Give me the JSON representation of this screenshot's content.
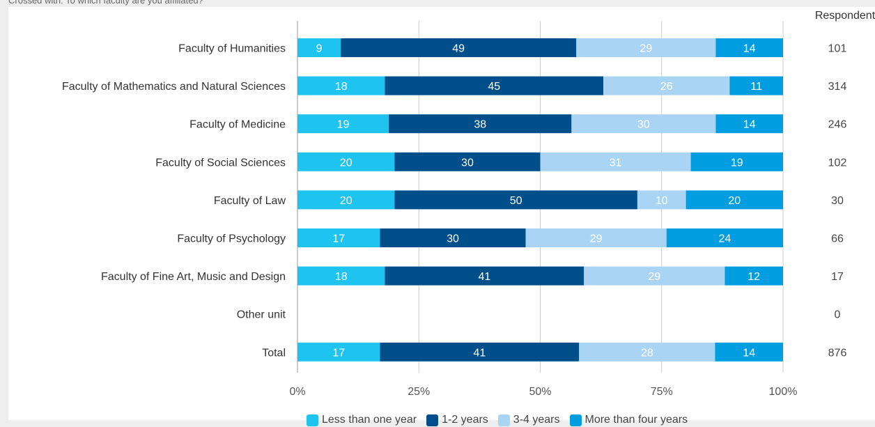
{
  "header": {
    "crossed_with": "Crossed with: To which faculty are you affiliated?"
  },
  "chart_data": {
    "type": "bar",
    "orientation": "horizontal",
    "stacked": true,
    "categories": [
      "Faculty of Humanities",
      "Faculty of Mathematics and Natural Sciences",
      "Faculty of Medicine",
      "Faculty of Social Sciences",
      "Faculty of Law",
      "Faculty of Psychology",
      "Faculty of Fine Art, Music and Design",
      "Other unit",
      "Total"
    ],
    "series": [
      {
        "name": "Less than one year",
        "color": "#1ec3f0",
        "values": [
          9,
          18,
          19,
          20,
          20,
          17,
          18,
          null,
          17
        ]
      },
      {
        "name": "1-2 years",
        "color": "#004f8b",
        "values": [
          49,
          45,
          38,
          30,
          50,
          30,
          41,
          null,
          41
        ]
      },
      {
        "name": "3-4 years",
        "color": "#a9d4f4",
        "values": [
          29,
          26,
          30,
          31,
          10,
          29,
          29,
          null,
          28
        ]
      },
      {
        "name": "More than four years",
        "color": "#009ee0",
        "values": [
          14,
          11,
          14,
          19,
          20,
          24,
          12,
          null,
          14
        ]
      }
    ],
    "respondents_label": "Respondents",
    "respondents": [
      101,
      314,
      246,
      102,
      30,
      66,
      17,
      0,
      876
    ],
    "xlim": [
      0,
      100
    ],
    "x_ticks": [
      "0%",
      "25%",
      "50%",
      "75%",
      "100%"
    ],
    "grid": true,
    "legend_position": "bottom"
  }
}
